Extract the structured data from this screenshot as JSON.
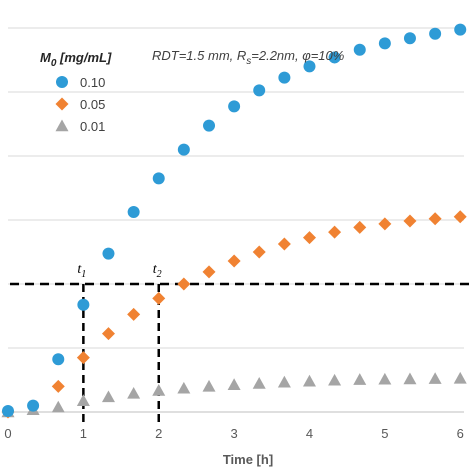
{
  "chart_data": {
    "type": "scatter",
    "xlabel": "Time [h]",
    "x_ticks": [
      "0",
      "1",
      "2",
      "3",
      "4",
      "5",
      "6"
    ],
    "xlim": [
      0,
      6.05
    ],
    "ylim": [
      0,
      0.12
    ],
    "legend": {
      "title_main": "M",
      "title_sub": "0",
      "title_unit": " [mg/mL]",
      "placement": "top-left"
    },
    "annotation": {
      "rdt": "RDT=1.5 mm, R",
      "rs_sub": "s",
      "rest": "=2.2nm,  φ=10%"
    },
    "series": [
      {
        "name": "0.10",
        "marker": "circle",
        "color": "#2E9BD6",
        "x": [
          0,
          0.333,
          0.667,
          1,
          1.333,
          1.667,
          2,
          2.333,
          2.667,
          3,
          3.333,
          3.667,
          4,
          4.333,
          4.667,
          5,
          5.333,
          5.667,
          6
        ],
        "y": [
          0.0003,
          0.002,
          0.0165,
          0.0335,
          0.0495,
          0.0625,
          0.073,
          0.082,
          0.0895,
          0.0955,
          0.1005,
          0.1045,
          0.108,
          0.1108,
          0.1132,
          0.1152,
          0.1168,
          0.1182,
          0.1195
        ]
      },
      {
        "name": "0.05",
        "marker": "diamond",
        "color": "#F08232",
        "x": [
          0,
          0.667,
          1,
          1.333,
          1.667,
          2,
          2.333,
          2.667,
          3,
          3.333,
          3.667,
          4,
          4.333,
          4.667,
          5,
          5.333,
          5.667,
          6
        ],
        "y": [
          0,
          0.008,
          0.017,
          0.0245,
          0.0305,
          0.0355,
          0.04,
          0.0438,
          0.0472,
          0.05,
          0.0525,
          0.0545,
          0.0562,
          0.0577,
          0.0588,
          0.0597,
          0.0604,
          0.061
        ]
      },
      {
        "name": "0.01",
        "marker": "triangle",
        "color": "#A5A5A5",
        "x": [
          0,
          0.333,
          0.667,
          1,
          1.333,
          1.667,
          2,
          2.333,
          2.667,
          3,
          3.333,
          3.667,
          4,
          4.333,
          4.667,
          5,
          5.333,
          5.667,
          6
        ],
        "y": [
          0,
          0.0007,
          0.0015,
          0.0035,
          0.0047,
          0.0058,
          0.0067,
          0.0074,
          0.008,
          0.0085,
          0.0089,
          0.0093,
          0.0096,
          0.0099,
          0.0101,
          0.0102,
          0.0103,
          0.0104,
          0.0105
        ]
      }
    ],
    "reference_lines": {
      "threshold_y": 0.04,
      "marks": [
        {
          "label": "t",
          "sub": "1",
          "x": 1
        },
        {
          "label": "t",
          "sub": "2",
          "x": 2
        }
      ]
    }
  }
}
